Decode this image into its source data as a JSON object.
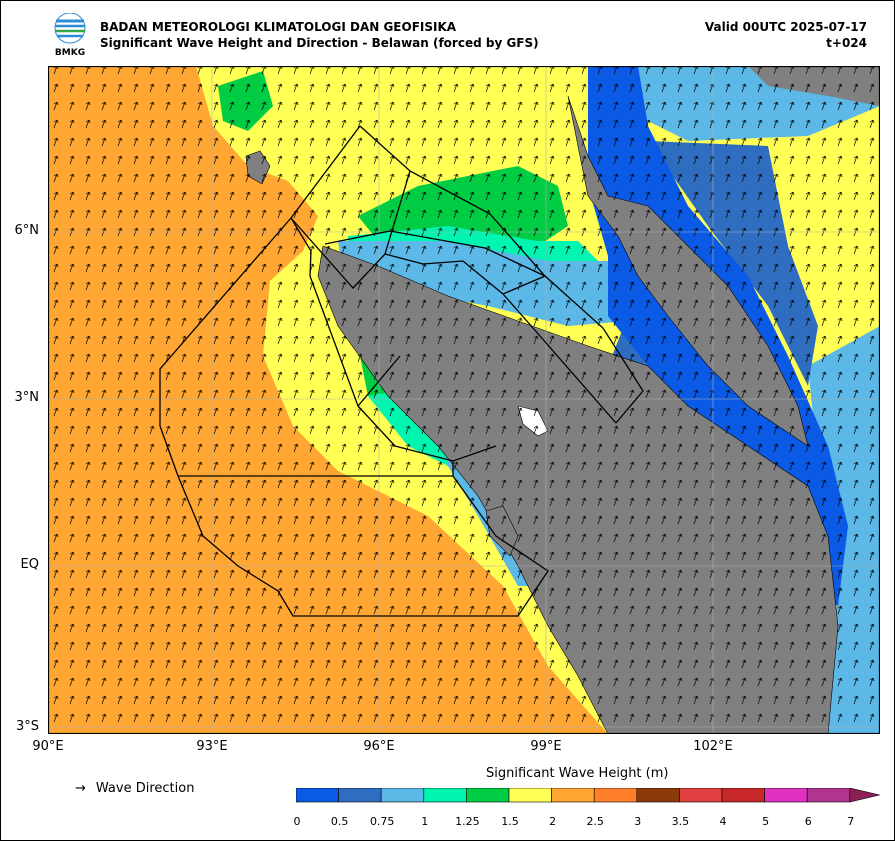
{
  "header": {
    "logo_text": "BMKG",
    "agency": "BADAN METEOROLOGI KLIMATOLOGI DAN GEOFISIKA",
    "subtitle": "Significant Wave Height and Direction - Belawan (forced by GFS)",
    "valid": "Valid 00UTC 2025-07-17",
    "lead_time": "t+024"
  },
  "map": {
    "lat_labels": [
      "6°N",
      "3°N",
      "EQ",
      "3°S"
    ],
    "lon_labels": [
      "90°E",
      "93°E",
      "96°E",
      "99°E",
      "102°E"
    ],
    "colors": {
      "land": "#808080",
      "ocean_high": "#FFA633",
      "arrow": "#000000",
      "border": "#000000",
      "grid": "#b0b0b0"
    }
  },
  "legend": {
    "direction_label": "Wave Direction",
    "direction_symbol": "→",
    "colorbar_title": "Significant Wave Height (m)",
    "ticks": [
      "0",
      "0.5",
      "0.75",
      "1",
      "1.25",
      "1.5",
      "2",
      "2.5",
      "3",
      "3.5",
      "4",
      "5",
      "6",
      "7"
    ],
    "colors": [
      "#0A5AE6",
      "#2E6DBF",
      "#5CB8E6",
      "#00F5B0",
      "#00CC44",
      "#FFFF55",
      "#FFA633",
      "#FF7F2A",
      "#8B3A0A",
      "#E04040",
      "#C8282A",
      "#E030C0",
      "#B0358F",
      "#8B1F56"
    ]
  }
}
